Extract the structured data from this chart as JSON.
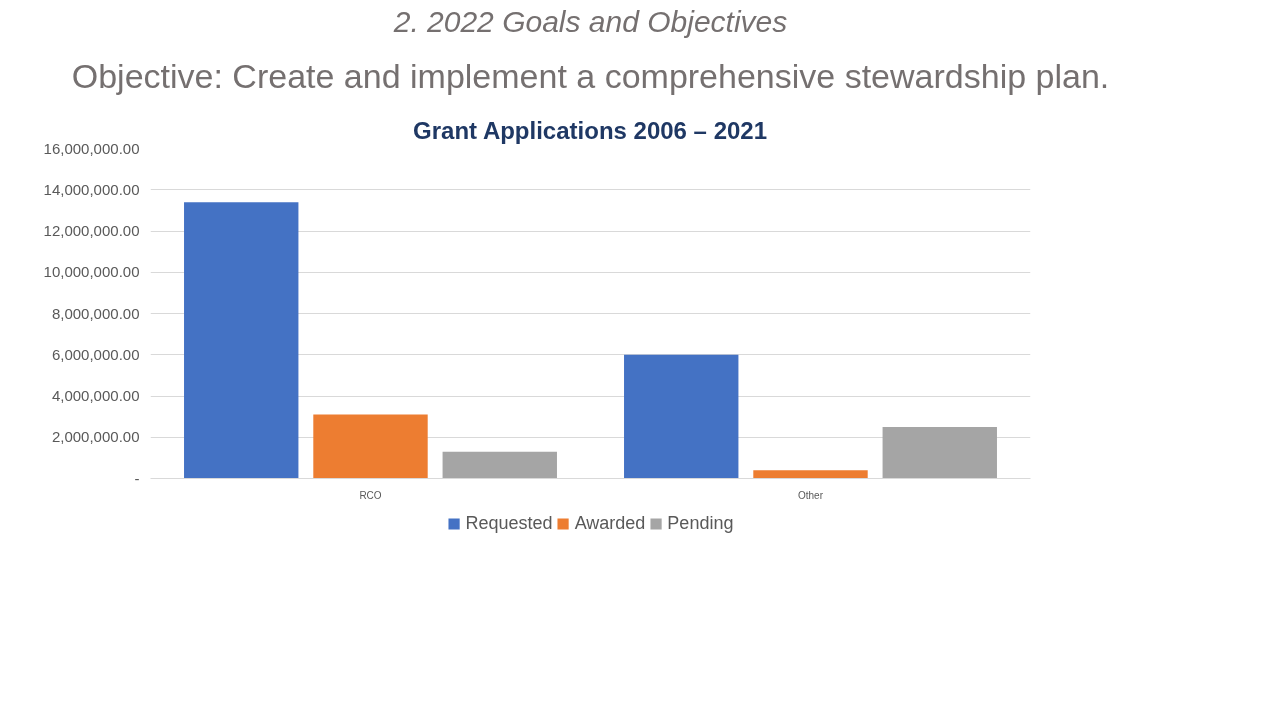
{
  "chart_data": {
    "type": "bar",
    "title": "Grant Applications 2006 – 2021",
    "annotations": [
      "2. 2022 Goals and Objectives",
      "Objective: Create and implement a comprehensive stewardship plan."
    ],
    "categories": [
      "RCO",
      "Other"
    ],
    "series": [
      {
        "name": "Requested",
        "color": "#4472c4",
        "values": [
          13400000,
          6000000
        ]
      },
      {
        "name": "Awarded",
        "color": "#ed7d31",
        "values": [
          3100000,
          400000
        ]
      },
      {
        "name": "Pending",
        "color": "#a5a5a5",
        "values": [
          1300000,
          2500000
        ]
      }
    ],
    "ylim": [
      0,
      16000000
    ],
    "yticks": [
      {
        "value": 0,
        "label": "-"
      },
      {
        "value": 2000000,
        "label": "2,000,000.00"
      },
      {
        "value": 4000000,
        "label": "4,000,000.00"
      },
      {
        "value": 6000000,
        "label": "6,000,000.00"
      },
      {
        "value": 8000000,
        "label": "8,000,000.00"
      },
      {
        "value": 10000000,
        "label": "10,000,000.00"
      },
      {
        "value": 12000000,
        "label": "12,000,000.00"
      },
      {
        "value": 14000000,
        "label": "14,000,000.00"
      },
      {
        "value": 16000000,
        "label": "16,000,000.00"
      }
    ],
    "grid": "y",
    "legend": "bottom"
  }
}
